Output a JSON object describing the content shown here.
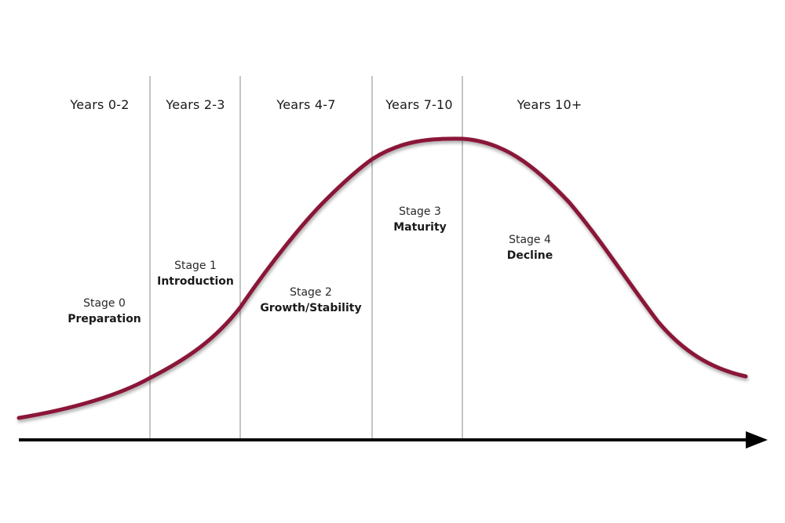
{
  "diagram": {
    "periods": [
      "Years 0-2",
      "Years 2-3",
      "Years 4-7",
      "Years 7-10",
      "Years 10+"
    ],
    "stages": [
      {
        "number": "Stage 0",
        "name": "Preparation"
      },
      {
        "number": "Stage 1",
        "name": "Introduction"
      },
      {
        "number": "Stage 2",
        "name": "Growth/Stability"
      },
      {
        "number": "Stage 3",
        "name": "Maturity"
      },
      {
        "number": "Stage 4",
        "name": "Decline"
      }
    ],
    "colors": {
      "curve": "#8a1538",
      "axis": "#000000",
      "divider": "#888888"
    }
  }
}
